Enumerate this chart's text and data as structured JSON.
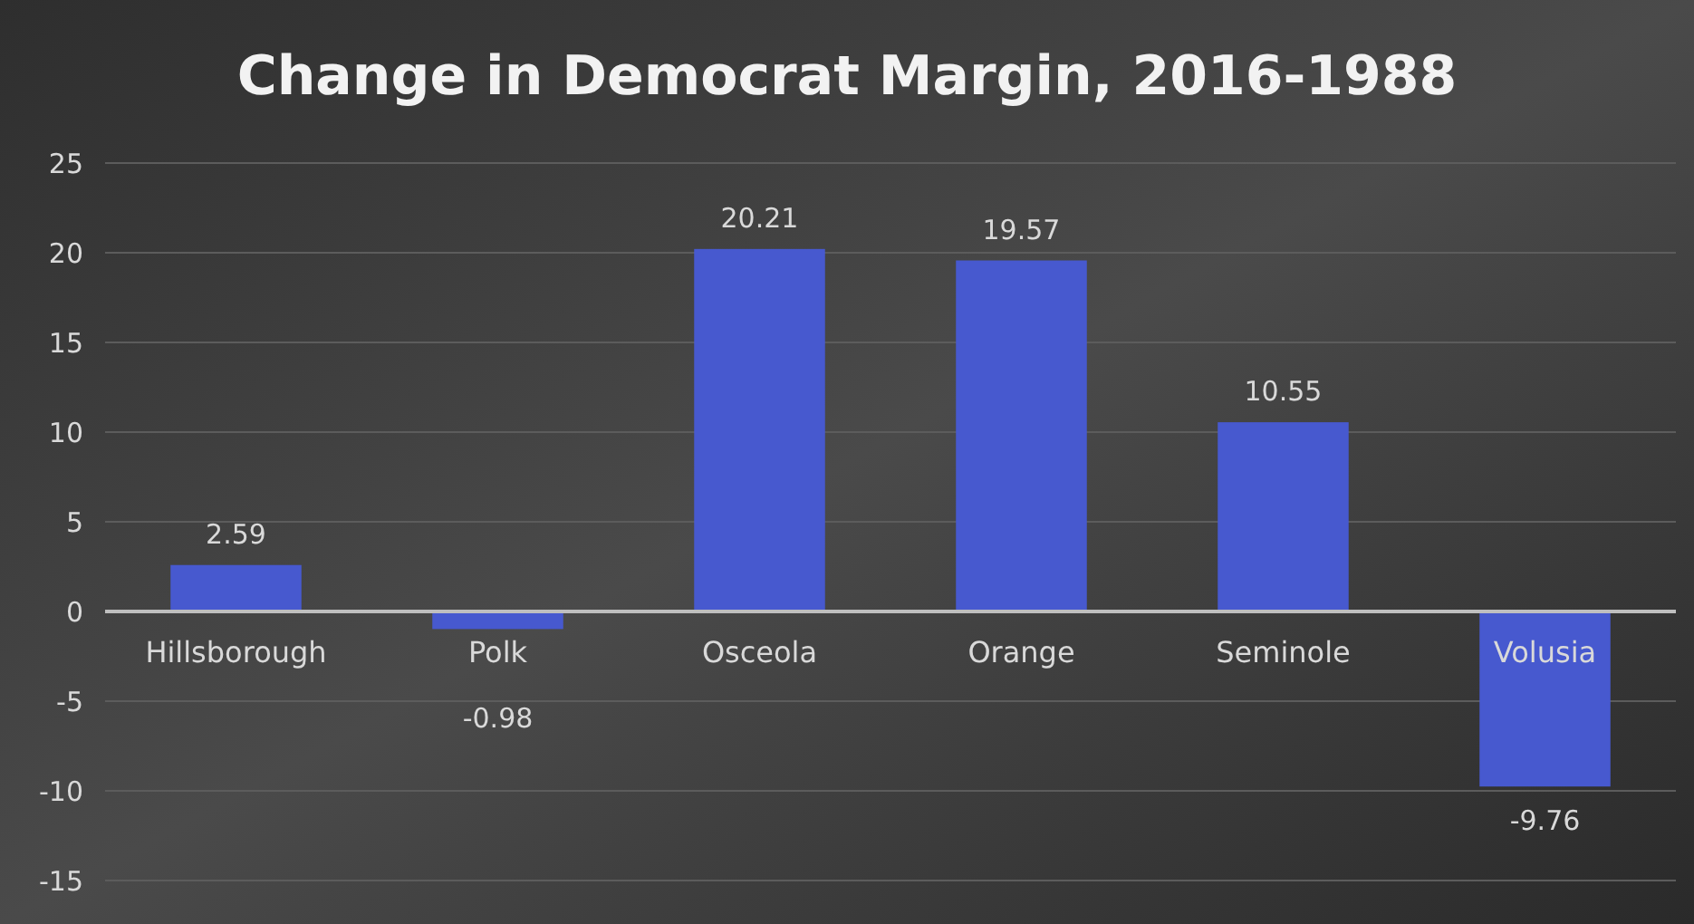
{
  "chart_data": {
    "type": "bar",
    "title": "Change in Democrat Margin, 2016-1988",
    "categories": [
      "Hillsborough",
      "Polk",
      "Osceola",
      "Orange",
      "Seminole",
      "Volusia"
    ],
    "values": [
      2.59,
      -0.98,
      20.21,
      19.57,
      10.55,
      -9.76
    ],
    "color": "#4759cf",
    "ylim": [
      -15,
      25
    ],
    "yticks": [
      -15,
      -10,
      -5,
      0,
      5,
      10,
      15,
      20,
      25
    ],
    "grid": "y",
    "data_labels": true
  }
}
